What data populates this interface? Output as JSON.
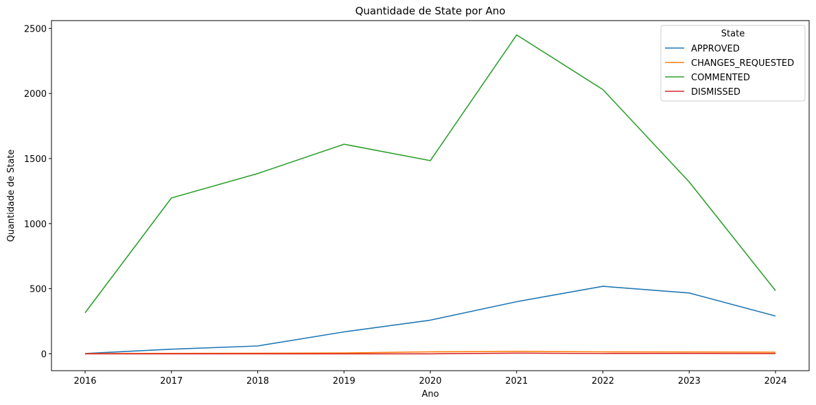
{
  "chart_data": {
    "type": "line",
    "title": "Quantidade de State por Ano",
    "xlabel": "Ano",
    "ylabel": "Quantidade de State",
    "x": [
      "2016",
      "2017",
      "2018",
      "2019",
      "2020",
      "2021",
      "2022",
      "2023",
      "2024"
    ],
    "yticks": [
      "0",
      "500",
      "1000",
      "1500",
      "2000",
      "2500"
    ],
    "ylim": [
      -130,
      2560
    ],
    "grid": false,
    "legend": {
      "title": "State",
      "placement": "top-right"
    },
    "series": [
      {
        "name": "APPROVED",
        "color": "#1f77b4",
        "values": [
          2,
          35,
          60,
          168,
          258,
          400,
          518,
          467,
          290
        ]
      },
      {
        "name": "CHANGES_REQUESTED",
        "color": "#ff7f0e",
        "values": [
          2,
          3,
          4,
          6,
          15,
          18,
          15,
          14,
          12
        ]
      },
      {
        "name": "COMMENTED",
        "color": "#2ca02c",
        "values": [
          315,
          1197,
          1385,
          1610,
          1484,
          2450,
          2030,
          1320,
          485
        ]
      },
      {
        "name": "DISMISSED",
        "color": "#d62728",
        "values": [
          0,
          0,
          0,
          0,
          0,
          5,
          2,
          3,
          1
        ]
      }
    ]
  }
}
